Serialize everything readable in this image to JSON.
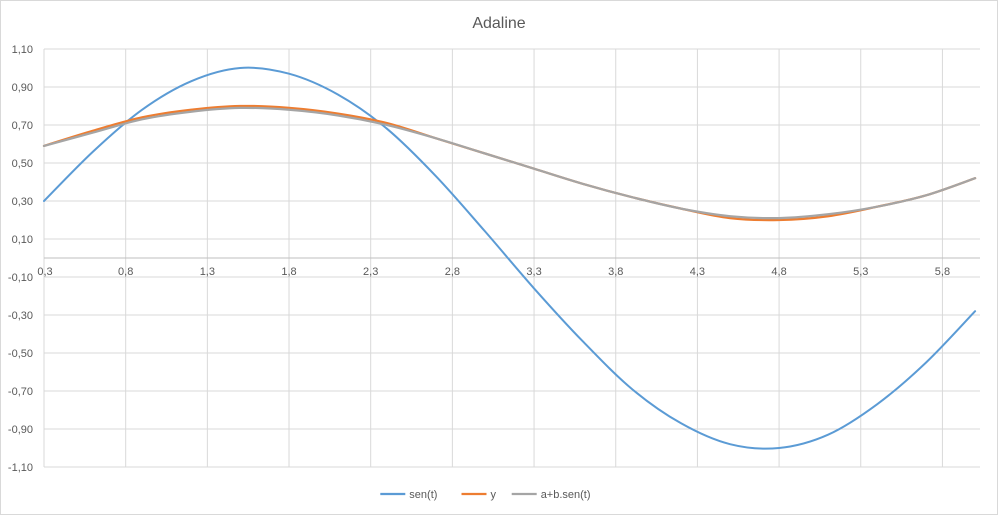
{
  "chart_data": {
    "type": "line",
    "title": "Adaline",
    "xlabel": "",
    "ylabel": "",
    "xlim": [
      0.3,
      6.03
    ],
    "ylim": [
      -1.1,
      1.1
    ],
    "x_ticks": [
      "0,3",
      "0,8",
      "1,3",
      "1,8",
      "2,3",
      "2,8",
      "3,3",
      "3,8",
      "4,3",
      "4,8",
      "5,3",
      "5,8"
    ],
    "y_ticks": [
      "1,10",
      "0,90",
      "0,70",
      "0,50",
      "0,30",
      "0,10",
      "-0,10",
      "-0,30",
      "-0,50",
      "-0,70",
      "-0,90",
      "-1,10"
    ],
    "grid": true,
    "legend_position": "bottom",
    "x": [
      0.3,
      0.6,
      0.9,
      1.2,
      1.5,
      1.8,
      2.1,
      2.4,
      2.7,
      3.0,
      3.3,
      3.6,
      3.9,
      4.2,
      4.5,
      4.8,
      5.1,
      5.4,
      5.7,
      6.0
    ],
    "series": [
      {
        "name": "sen(t)",
        "color": "#5b9bd5",
        "values": [
          0.3,
          0.56,
          0.78,
          0.93,
          1.0,
          0.97,
          0.86,
          0.68,
          0.43,
          0.14,
          -0.16,
          -0.44,
          -0.69,
          -0.87,
          -0.98,
          -1.0,
          -0.93,
          -0.77,
          -0.55,
          -0.28
        ]
      },
      {
        "name": "y",
        "color": "#ed7d31",
        "values": [
          0.59,
          0.67,
          0.74,
          0.78,
          0.8,
          0.79,
          0.76,
          0.71,
          0.63,
          0.55,
          0.47,
          0.39,
          0.32,
          0.26,
          0.21,
          0.2,
          0.22,
          0.27,
          0.33,
          0.42
        ]
      },
      {
        "name": "a+b.sen(t)",
        "color": "#a5a5a5",
        "values": [
          0.59,
          0.66,
          0.73,
          0.77,
          0.79,
          0.78,
          0.75,
          0.7,
          0.63,
          0.55,
          0.47,
          0.39,
          0.32,
          0.26,
          0.22,
          0.21,
          0.23,
          0.27,
          0.33,
          0.42
        ]
      }
    ]
  }
}
